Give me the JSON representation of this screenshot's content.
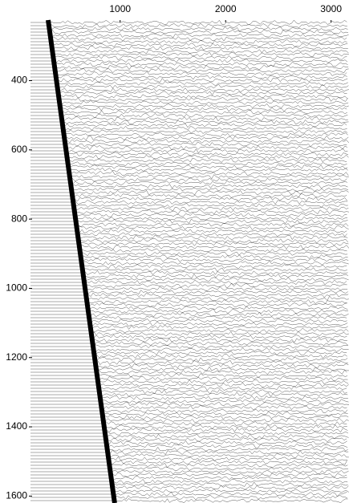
{
  "chart_data": {
    "type": "line",
    "x_axis_position": "top",
    "y_inverted": true,
    "xlim": [
      150,
      3170
    ],
    "ylim": [
      225,
      1620
    ],
    "xticks": [
      1000,
      2000,
      3000
    ],
    "yticks": [
      400,
      600,
      800,
      1000,
      1200,
      1400,
      1600
    ],
    "x": [
      317,
      948
    ],
    "series": [
      {
        "color": "#000000",
        "values": [
          225,
          1620
        ]
      }
    ]
  }
}
